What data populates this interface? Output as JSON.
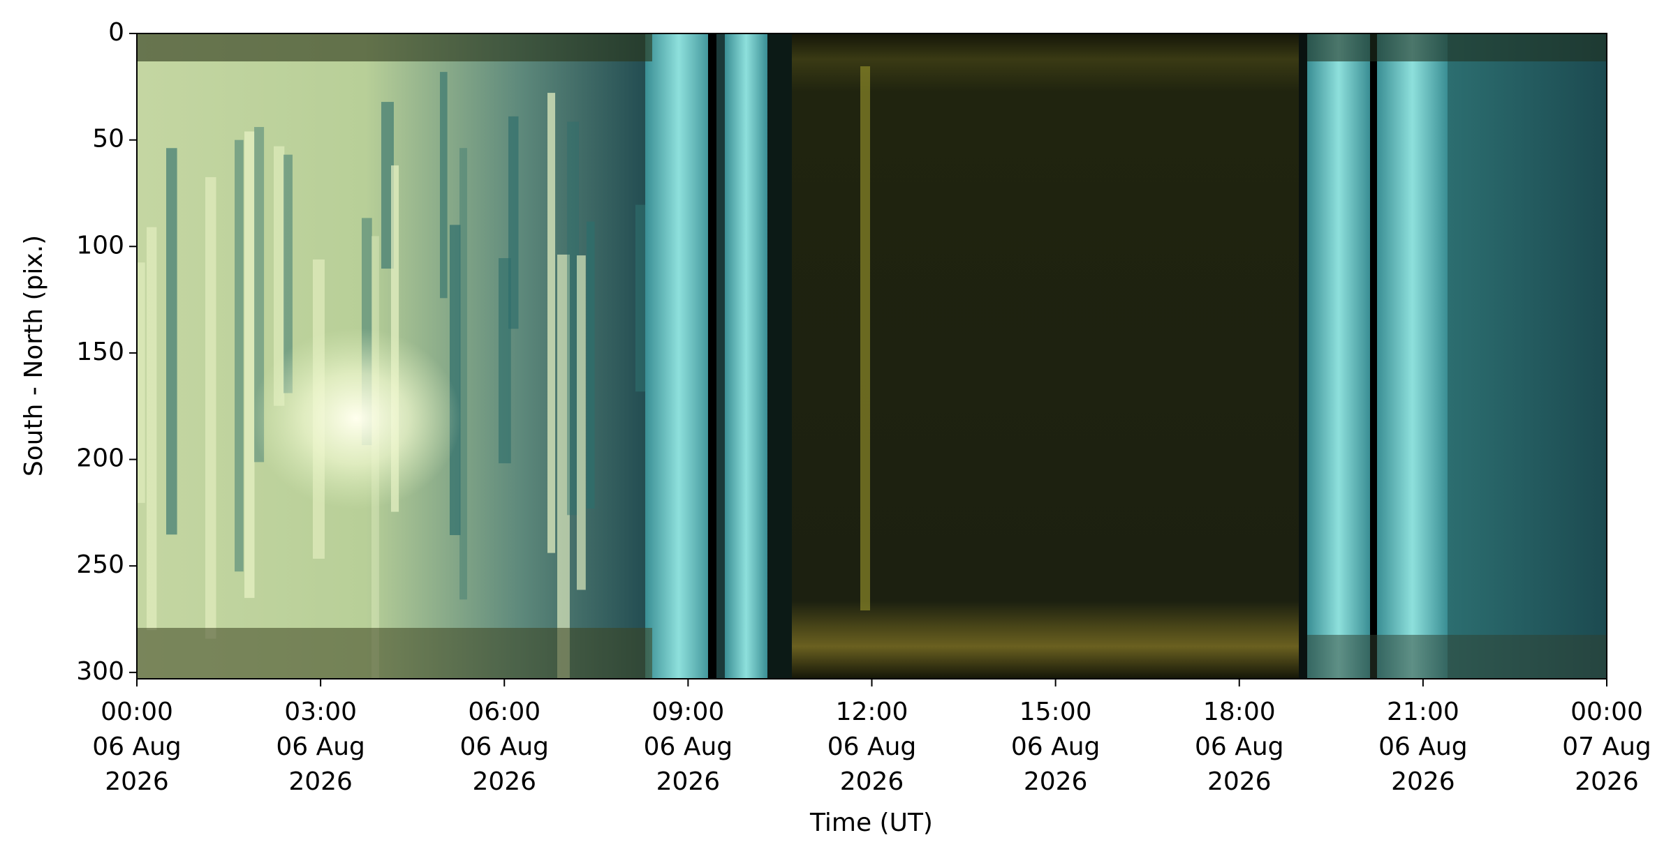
{
  "chart_data": {
    "type": "keogram",
    "xlabel": "Time (UT)",
    "ylabel": "South - North (pix.)",
    "xlim": [
      "2026-08-06T00:00",
      "2026-08-07T00:00"
    ],
    "xticks": [
      {
        "value": "2026-08-06T00:00",
        "label": [
          "00:00",
          "06 Aug",
          "2026"
        ]
      },
      {
        "value": "2026-08-06T03:00",
        "label": [
          "03:00",
          "06 Aug",
          "2026"
        ]
      },
      {
        "value": "2026-08-06T06:00",
        "label": [
          "06:00",
          "06 Aug",
          "2026"
        ]
      },
      {
        "value": "2026-08-06T09:00",
        "label": [
          "09:00",
          "06 Aug",
          "2026"
        ]
      },
      {
        "value": "2026-08-06T12:00",
        "label": [
          "12:00",
          "06 Aug",
          "2026"
        ]
      },
      {
        "value": "2026-08-06T15:00",
        "label": [
          "15:00",
          "06 Aug",
          "2026"
        ]
      },
      {
        "value": "2026-08-06T18:00",
        "label": [
          "18:00",
          "06 Aug",
          "2026"
        ]
      },
      {
        "value": "2026-08-06T21:00",
        "label": [
          "21:00",
          "06 Aug",
          "2026"
        ]
      },
      {
        "value": "2026-08-07T00:00",
        "label": [
          "00:00",
          "07 Aug",
          "2026"
        ]
      }
    ],
    "ylim": [
      303,
      0
    ],
    "yticks": [
      0,
      50,
      100,
      150,
      200,
      250,
      300
    ]
  }
}
